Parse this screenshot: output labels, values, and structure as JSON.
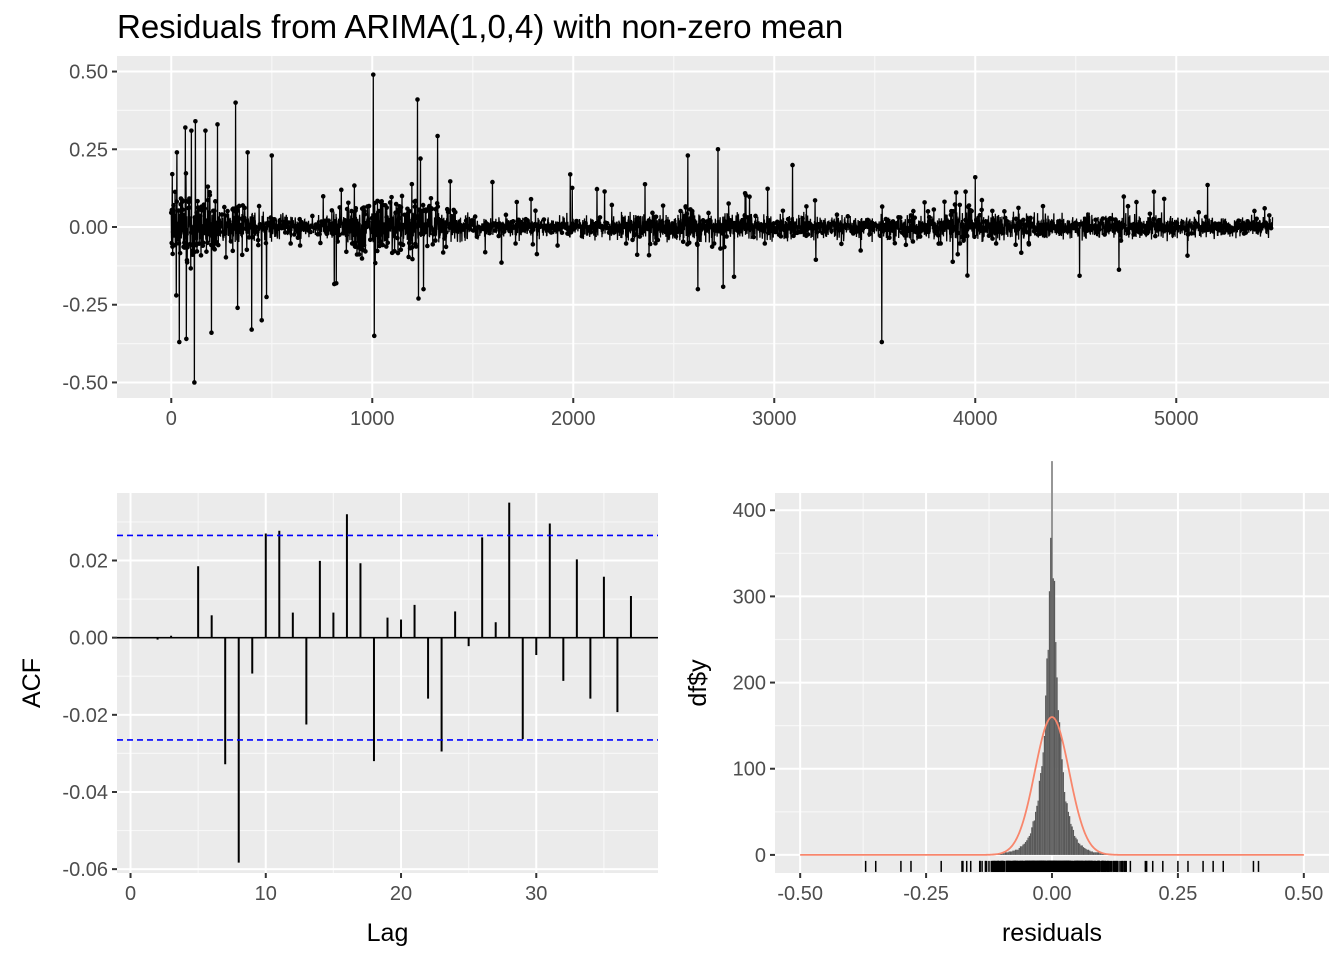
{
  "title": "Residuals from ARIMA(1,0,4) with non-zero mean",
  "chart_data": [
    {
      "type": "line",
      "id": "residual_series",
      "title": "Residuals from ARIMA(1,0,4) with non-zero mean",
      "xlabel": "",
      "ylabel": "",
      "xlim": [
        -270,
        5760
      ],
      "ylim": [
        -0.55,
        0.55
      ],
      "x_ticks": [
        0,
        1000,
        2000,
        3000,
        4000,
        5000
      ],
      "y_ticks": [
        -0.5,
        -0.25,
        0.0,
        0.25,
        0.5
      ],
      "y_tick_labels": [
        "-0.50",
        "-0.25",
        "0.00",
        "0.25",
        "0.50"
      ],
      "n_points": 5480,
      "series": [
        {
          "name": "",
          "note_points": "notable spikes read from the figure",
          "x": [
            5,
            25,
            28,
            40,
            70,
            75,
            100,
            115,
            120,
            170,
            200,
            230,
            320,
            330,
            380,
            400,
            450,
            500,
            1005,
            1010,
            1225,
            1230,
            1240,
            1255,
            2570,
            2620,
            2720,
            2800,
            3535,
            4000,
            5440
          ],
          "y": [
            0.17,
            -0.22,
            0.24,
            -0.37,
            0.32,
            -0.36,
            0.31,
            -0.5,
            0.34,
            0.31,
            -0.34,
            0.33,
            0.4,
            -0.26,
            0.24,
            -0.33,
            -0.3,
            0.23,
            0.49,
            -0.35,
            0.41,
            -0.23,
            0.22,
            -0.2,
            0.23,
            -0.2,
            0.25,
            -0.16,
            -0.37,
            0.16,
            0.06
          ]
        }
      ],
      "volatility_profile": {
        "x": [
          0,
          600,
          700,
          950,
          1300,
          1500,
          2000,
          2500,
          2900,
          3500,
          3900,
          4300,
          5000,
          5480
        ],
        "sd": [
          0.09,
          0.035,
          0.02,
          0.07,
          0.06,
          0.03,
          0.025,
          0.045,
          0.035,
          0.028,
          0.045,
          0.035,
          0.03,
          0.025
        ]
      },
      "grid": true,
      "colors": {
        "line": "#000000",
        "panel": "#ebebeb",
        "grid": "#ffffff"
      }
    },
    {
      "type": "bar",
      "id": "acf",
      "xlabel": "Lag",
      "ylabel": "ACF",
      "xlim": [
        -1,
        39
      ],
      "ylim": [
        -0.061,
        0.0375
      ],
      "x_ticks": [
        0,
        10,
        20,
        30
      ],
      "y_ticks": [
        -0.06,
        -0.04,
        -0.02,
        0.0,
        0.02
      ],
      "y_tick_labels": [
        "-0.06",
        "-0.04",
        "-0.02",
        "0.00",
        "0.02"
      ],
      "lags": [
        1,
        2,
        3,
        4,
        5,
        6,
        7,
        8,
        9,
        10,
        11,
        12,
        13,
        14,
        15,
        16,
        17,
        18,
        19,
        20,
        21,
        22,
        23,
        24,
        25,
        26,
        27,
        28,
        29,
        30,
        31,
        32,
        33,
        34,
        35,
        36,
        37
      ],
      "values": [
        0.0,
        -0.0005,
        0.0005,
        0.0,
        0.0185,
        0.0058,
        -0.0328,
        -0.0583,
        -0.0093,
        0.027,
        0.0277,
        0.0065,
        -0.0225,
        0.0199,
        0.0065,
        0.032,
        0.0193,
        -0.032,
        0.0052,
        0.0047,
        0.0085,
        -0.0158,
        -0.0295,
        0.0068,
        -0.0022,
        0.026,
        0.004,
        0.035,
        -0.0263,
        -0.0045,
        0.0296,
        -0.0112,
        0.0203,
        -0.0158,
        0.0158,
        -0.0193,
        0.0108
      ],
      "confidence_bound": 0.0265,
      "grid": true,
      "colors": {
        "bars": "#000000",
        "bound": "#0000ff"
      }
    },
    {
      "type": "bar",
      "id": "histogram",
      "xlabel": "residuals",
      "ylabel": "df$y",
      "xlim": [
        -0.55,
        0.55
      ],
      "ylim": [
        -21,
        420
      ],
      "x_ticks": [
        -0.5,
        -0.25,
        0.0,
        0.25,
        0.5
      ],
      "x_tick_labels": [
        "-0.50",
        "-0.25",
        "0.00",
        "0.25",
        "0.50"
      ],
      "y_ticks": [
        0,
        100,
        200,
        300,
        400
      ],
      "histogram_peak_counts": {
        "bin_center": [
          -0.03,
          -0.02,
          -0.01,
          -0.005,
          0.0,
          0.005,
          0.01,
          0.02,
          0.03
        ],
        "count": [
          60,
          110,
          230,
          330,
          410,
          330,
          220,
          100,
          55
        ]
      },
      "normal_curve": {
        "mean": 0.0,
        "sd": 0.034,
        "peak": 160
      },
      "grid": true,
      "colors": {
        "bars": "#595959",
        "curve": "#f8866c",
        "rug": "#000000"
      }
    }
  ]
}
